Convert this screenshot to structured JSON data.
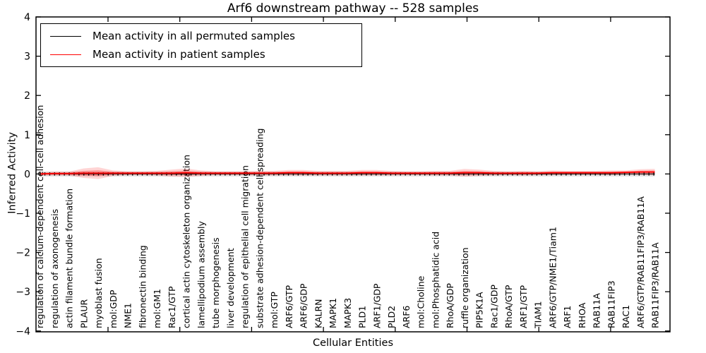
{
  "chart_data": {
    "type": "line",
    "title": "Arf6 downstream pathway -- 528 samples",
    "xlabel": "Cellular Entities",
    "ylabel": "Inferred Activity",
    "ylim": [
      -4,
      4
    ],
    "ytick_labels": [
      "4",
      "3",
      "2",
      "1",
      "0",
      "−1",
      "−2",
      "−3",
      "−4"
    ],
    "ytick_values": [
      4,
      3,
      2,
      1,
      0,
      -1,
      -2,
      -3,
      -4
    ],
    "grid": false,
    "legend_position": "upper left",
    "categories": [
      "regulation of calcium-dependent cell-cell adhesion",
      "regulation of axonogenesis",
      "actin filament bundle formation",
      "PLAUR",
      "myoblast fusion",
      "mol:GDP",
      "NME1",
      "fibronectin binding",
      "mol:GM1",
      "Rac1/GTP",
      "cortical actin cytoskeleton organization",
      "lamellipodium assembly",
      "tube morphogenesis",
      "liver development",
      "regulation of epithelial cell migration",
      "substrate adhesion-dependent cell spreading",
      "mol:GTP",
      "ARF6/GTP",
      "ARF6/GDP",
      "KALRN",
      "MAPK1",
      "MAPK3",
      "PLD1",
      "ARF1/GDP",
      "PLD2",
      "ARF6",
      "mol:Choline",
      "mol:Phosphatidic acid",
      "RhoA/GDP",
      "ruffle organization",
      "PIP5K1A",
      "Rac1/GDP",
      "RhoA/GTP",
      "ARF1/GTP",
      "TIAM1",
      "ARF6/GTP/NME1/Tiam1",
      "ARF1",
      "RHOA",
      "RAB11A",
      "RAB11FIP3",
      "RAC1",
      "ARF6/GTP/RAB11FIP3/RAB11A",
      "RAB11FIP3/RAB11A"
    ],
    "series": [
      {
        "name": "Mean activity in all permuted samples",
        "color": "#000000",
        "style": "dotted",
        "values": [
          0,
          0,
          0,
          0,
          0,
          0,
          0,
          0,
          0,
          0,
          0,
          0,
          0,
          0,
          0,
          0,
          0,
          0,
          0,
          0,
          0,
          0,
          0,
          0,
          0,
          0,
          0,
          0,
          0,
          0,
          0,
          0,
          0,
          0,
          0,
          0,
          0,
          0,
          0,
          0,
          0,
          0,
          0
        ],
        "band_halfwidth": 0.06
      },
      {
        "name": "Mean activity in patient samples",
        "color": "#ff0000",
        "style": "solid",
        "values": [
          0.0,
          0.01,
          0.01,
          0.02,
          0.02,
          0.02,
          0.02,
          0.02,
          0.02,
          0.02,
          0.03,
          0.02,
          0.02,
          0.02,
          0.02,
          0.02,
          0.02,
          0.03,
          0.03,
          0.02,
          0.02,
          0.02,
          0.03,
          0.03,
          0.02,
          0.02,
          0.02,
          0.02,
          0.02,
          0.03,
          0.03,
          0.02,
          0.02,
          0.02,
          0.02,
          0.03,
          0.03,
          0.03,
          0.03,
          0.03,
          0.04,
          0.05,
          0.05
        ],
        "band_halfwidths": [
          0.04,
          0.05,
          0.05,
          0.12,
          0.15,
          0.07,
          0.05,
          0.05,
          0.06,
          0.09,
          0.11,
          0.07,
          0.05,
          0.05,
          0.05,
          0.06,
          0.06,
          0.07,
          0.07,
          0.06,
          0.06,
          0.06,
          0.07,
          0.07,
          0.06,
          0.05,
          0.05,
          0.06,
          0.06,
          0.1,
          0.08,
          0.06,
          0.05,
          0.06,
          0.05,
          0.06,
          0.05,
          0.05,
          0.05,
          0.06,
          0.05,
          0.07,
          0.08
        ]
      }
    ]
  }
}
